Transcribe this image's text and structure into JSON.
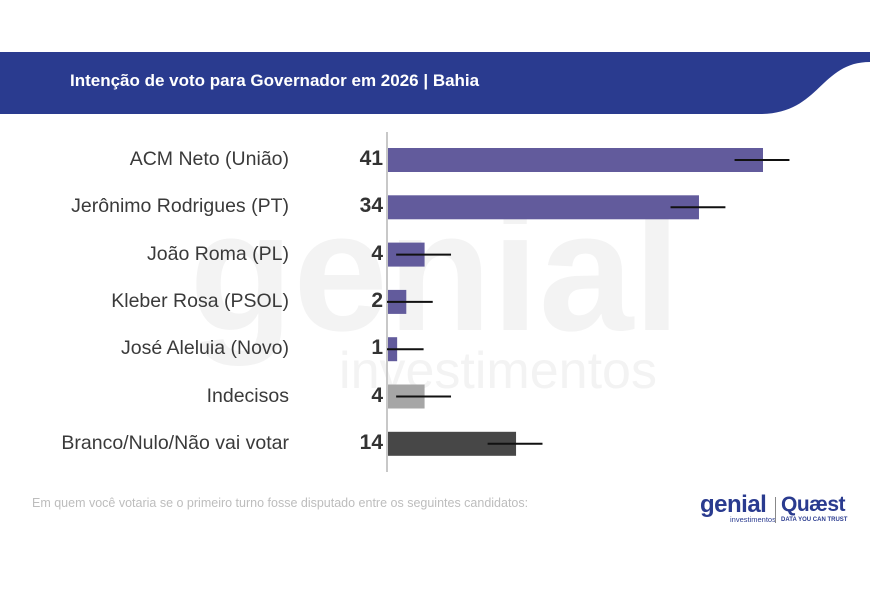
{
  "header": {
    "title": "Intenção de voto para Governador em 2026 | Bahia",
    "band_color": "#2a3b8f"
  },
  "chart_data": {
    "type": "bar",
    "orientation": "horizontal",
    "title": "Intenção de voto para Governador em 2026 | Bahia",
    "categories": [
      "ACM Neto (União)",
      "Jerônimo Rodrigues (PT)",
      "João Roma (PL)",
      "Kleber Rosa (PSOL)",
      "José Aleluia (Novo)",
      "Indecisos",
      "Branco/Nulo/Não vai votar"
    ],
    "values": [
      41,
      34,
      4,
      2,
      1,
      4,
      14
    ],
    "value_labels": [
      "41",
      "34",
      "4",
      "2",
      "1",
      "4",
      "14"
    ],
    "error_low": [
      38,
      31,
      1,
      0,
      0,
      1,
      11
    ],
    "error_high": [
      44,
      37,
      7,
      5,
      4,
      7,
      17
    ],
    "bar_colors": [
      "#625b9c",
      "#625b9c",
      "#625b9c",
      "#625b9c",
      "#625b9c",
      "#a6a6a6",
      "#474747"
    ],
    "xlim": [
      0,
      50
    ],
    "grid": false,
    "legend": "none"
  },
  "footer": {
    "note": "Em quem você votaria se o primeiro turno fosse disputado entre os seguintes candidatos:",
    "logo_genial": "genial",
    "logo_genial_sub": "investimentos",
    "logo_quaest": "Quæst",
    "logo_quaest_sub": "DATA YOU CAN TRUST"
  },
  "watermark": {
    "main": "genial",
    "sub": "investimentos"
  }
}
